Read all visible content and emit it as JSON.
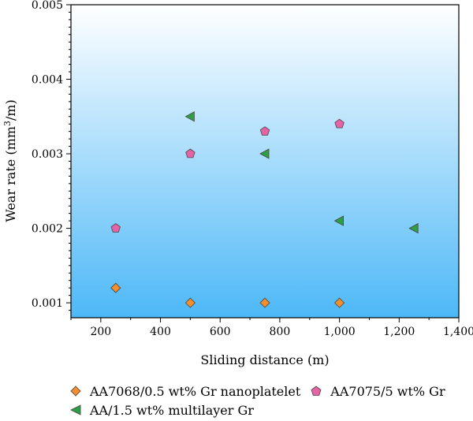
{
  "chart_data": {
    "type": "scatter",
    "title": "",
    "xlabel": "Sliding distance (m)",
    "ylabel_main": "Wear rate (mm",
    "ylabel_sup": "3",
    "ylabel_end": "/m)",
    "xlim": [
      100,
      1400
    ],
    "ylim": [
      0.0008,
      0.005
    ],
    "xticks": [
      200,
      400,
      600,
      800,
      1000,
      1200,
      1400
    ],
    "xtick_labels": [
      "200",
      "400",
      "600",
      "800",
      "1,000",
      "1,200",
      "1,400"
    ],
    "yticks": [
      0.001,
      0.002,
      0.003,
      0.004,
      0.005
    ],
    "ytick_labels": [
      "0.001",
      "0.002",
      "0.003",
      "0.004",
      "0.005"
    ],
    "background_gradient": [
      "#ffffff",
      "#4db8f7"
    ],
    "legend_placement": "bottom",
    "series": [
      {
        "name": "AA7068/0.5 wt% Gr nanoplatelet",
        "marker": "diamond",
        "color": "#f28e2b",
        "x": [
          250,
          500,
          750,
          1000
        ],
        "y": [
          0.0012,
          0.001,
          0.001,
          0.001
        ]
      },
      {
        "name": "AA7075/5 wt% Gr",
        "marker": "pentagon",
        "color": "#e763a8",
        "x": [
          250,
          500,
          750,
          1000
        ],
        "y": [
          0.002,
          0.003,
          0.0033,
          0.0034
        ]
      },
      {
        "name": "AA/1.5 wt% multilayer Gr",
        "marker": "triangle-left",
        "color": "#2f9e44",
        "x": [
          500,
          750,
          1000,
          1250
        ],
        "y": [
          0.0035,
          0.003,
          0.0021,
          0.002
        ]
      }
    ]
  }
}
